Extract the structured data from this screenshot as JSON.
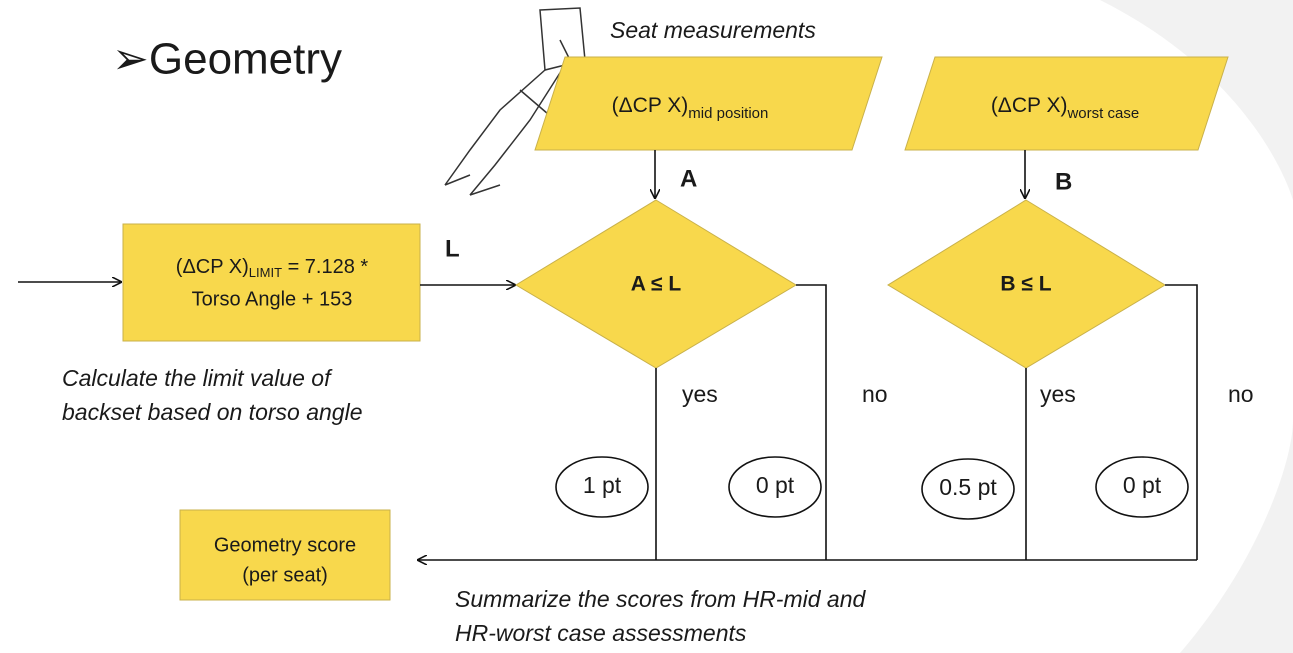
{
  "header": {
    "title": "➢Geometry"
  },
  "seat_measurements_label": "Seat measurements",
  "inputs": [
    {
      "main": "(ΔCP X)",
      "sub": "mid position",
      "arrow_label": "A"
    },
    {
      "main": "(ΔCP X)",
      "sub": "worst case",
      "arrow_label": "B"
    }
  ],
  "limit_box": {
    "main": "(ΔCP X)",
    "sub": "LIMIT",
    "rest": " = 7.128 *",
    "line2": "Torso Angle + 153",
    "output_label": "L"
  },
  "limit_note": [
    "Calculate the limit value of",
    "backset based on torso angle"
  ],
  "decisions": [
    {
      "label": "A ≤ L",
      "yes": "yes",
      "no": "no",
      "yes_score": "1 pt",
      "no_score": "0 pt"
    },
    {
      "label": "B ≤ L",
      "yes": "yes",
      "no": "no",
      "yes_score": "0.5 pt",
      "no_score": "0 pt"
    }
  ],
  "result_box": [
    "Geometry score",
    "(per seat)"
  ],
  "summary_note": [
    "Summarize the scores from HR-mid and",
    "HR-worst case assessments"
  ]
}
